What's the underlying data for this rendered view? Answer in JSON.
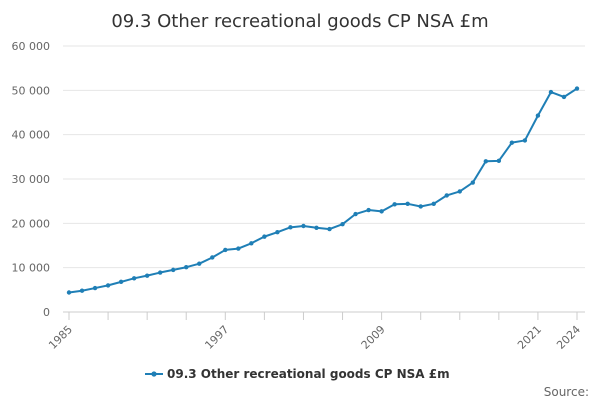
{
  "chart_data": {
    "type": "line",
    "title": "09.3 Other recreational goods CP NSA £m",
    "xlabel": "",
    "ylabel": "",
    "ylim": [
      0,
      60000
    ],
    "xlim": [
      1985,
      2024
    ],
    "y_ticks": [
      "0",
      "10 000",
      "20 000",
      "30 000",
      "40 000",
      "50 000",
      "60 000"
    ],
    "x_tick_labels": [
      "1985",
      "1997",
      "2009",
      "2021",
      "2024"
    ],
    "grid": true,
    "legend_position": "bottom",
    "series": [
      {
        "name": "09.3 Other recreational goods CP NSA £m",
        "color": "#1f7fb6",
        "x": [
          1985,
          1986,
          1987,
          1988,
          1989,
          1990,
          1991,
          1992,
          1993,
          1994,
          1995,
          1996,
          1997,
          1998,
          1999,
          2000,
          2001,
          2002,
          2003,
          2004,
          2005,
          2006,
          2007,
          2008,
          2009,
          2010,
          2011,
          2012,
          2013,
          2014,
          2015,
          2016,
          2017,
          2018,
          2019,
          2020,
          2021,
          2022,
          2023,
          2024
        ],
        "values": [
          4400,
          4800,
          5400,
          6000,
          6800,
          7600,
          8200,
          8900,
          9500,
          10100,
          10900,
          12300,
          14000,
          14300,
          15500,
          17000,
          18000,
          19100,
          19400,
          19000,
          18700,
          19800,
          22100,
          23000,
          22700,
          24300,
          24400,
          23800,
          24400,
          26300,
          27200,
          29200,
          34000,
          34100,
          38200,
          38700,
          44300,
          49600,
          48500,
          50400
        ]
      }
    ],
    "source_label": "Source:"
  }
}
